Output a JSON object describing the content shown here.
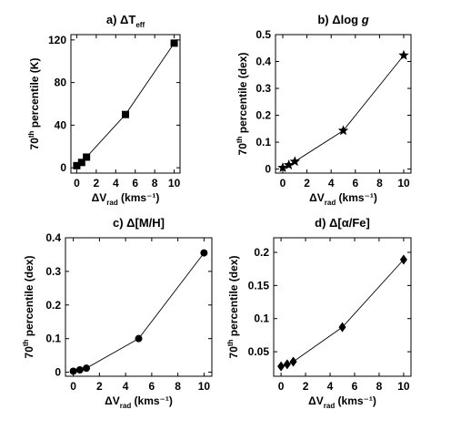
{
  "chart_data": [
    {
      "panel_id": "a",
      "type": "line",
      "title_prefix": "a)",
      "title": "ΔT",
      "title_sub": "eff",
      "title_italic_suffix": "",
      "xlabel": "ΔV",
      "xlabel_sub": "rad",
      "xlabel_unit": " (kms⁻¹)",
      "ylabel": "70",
      "ylabel_sup": "th",
      "ylabel_rest": " percentile (K)",
      "xlim": [
        -0.6,
        10.6
      ],
      "ylim": [
        -5,
        125
      ],
      "xticks": [
        0,
        2,
        4,
        6,
        8,
        10
      ],
      "yticks": [
        0,
        40,
        80,
        120
      ],
      "ytick_labels": [
        "0",
        "40",
        "80",
        "120"
      ],
      "marker": "square",
      "x": [
        0,
        0.5,
        1,
        5,
        10
      ],
      "y": [
        2,
        5,
        10,
        50,
        117
      ]
    },
    {
      "panel_id": "b",
      "type": "line",
      "title_prefix": "b)",
      "title": "Δlog ",
      "title_sub": "",
      "title_italic_suffix": "g",
      "xlabel": "ΔV",
      "xlabel_sub": "rad",
      "xlabel_unit": " (kms⁻¹)",
      "ylabel": "70",
      "ylabel_sup": "th",
      "ylabel_rest": " percentile (dex)",
      "xlim": [
        -0.6,
        10.6
      ],
      "ylim": [
        -0.015,
        0.5
      ],
      "xticks": [
        0,
        2,
        4,
        6,
        8,
        10
      ],
      "yticks": [
        0,
        0.1,
        0.2,
        0.3,
        0.4,
        0.5
      ],
      "ytick_labels": [
        "0",
        "0.1",
        "0.2",
        "0.3",
        "0.4",
        "0.5"
      ],
      "marker": "star",
      "x": [
        0,
        0.5,
        1,
        5,
        10
      ],
      "y": [
        0.005,
        0.015,
        0.028,
        0.143,
        0.423
      ]
    },
    {
      "panel_id": "c",
      "type": "line",
      "title_prefix": "c)",
      "title": "Δ[M/H]",
      "title_sub": "",
      "title_italic_suffix": "",
      "xlabel": "ΔV",
      "xlabel_sub": "rad",
      "xlabel_unit": " (kms⁻¹)",
      "ylabel": "70",
      "ylabel_sup": "th",
      "ylabel_rest": " percentile (dex)",
      "xlim": [
        -0.6,
        10.6
      ],
      "ylim": [
        -0.012,
        0.4
      ],
      "xticks": [
        0,
        2,
        4,
        6,
        8,
        10
      ],
      "yticks": [
        0,
        0.1,
        0.2,
        0.3,
        0.4
      ],
      "ytick_labels": [
        "0",
        "0.1",
        "0.2",
        "0.3",
        "0.4"
      ],
      "marker": "circle",
      "x": [
        0,
        0.5,
        1,
        5,
        10
      ],
      "y": [
        0.003,
        0.007,
        0.012,
        0.1,
        0.355
      ]
    },
    {
      "panel_id": "d",
      "type": "line",
      "title_prefix": "d)",
      "title": "Δ[α/Fe]",
      "title_sub": "",
      "title_italic_suffix": "",
      "xlabel": "ΔV",
      "xlabel_sub": "rad",
      "xlabel_unit": " (kms⁻¹)",
      "ylabel": "70",
      "ylabel_sup": "th",
      "ylabel_rest": " percentile (dex)",
      "xlim": [
        -0.6,
        10.6
      ],
      "ylim": [
        0.013,
        0.222
      ],
      "xticks": [
        0,
        2,
        4,
        6,
        8,
        10
      ],
      "yticks": [
        0.05,
        0.1,
        0.15,
        0.2
      ],
      "ytick_labels": [
        "0.05",
        "0.1",
        "0.15",
        "0.2"
      ],
      "marker": "diamond",
      "x": [
        0,
        0.5,
        1,
        5,
        10
      ],
      "y": [
        0.028,
        0.031,
        0.035,
        0.087,
        0.189
      ]
    }
  ]
}
